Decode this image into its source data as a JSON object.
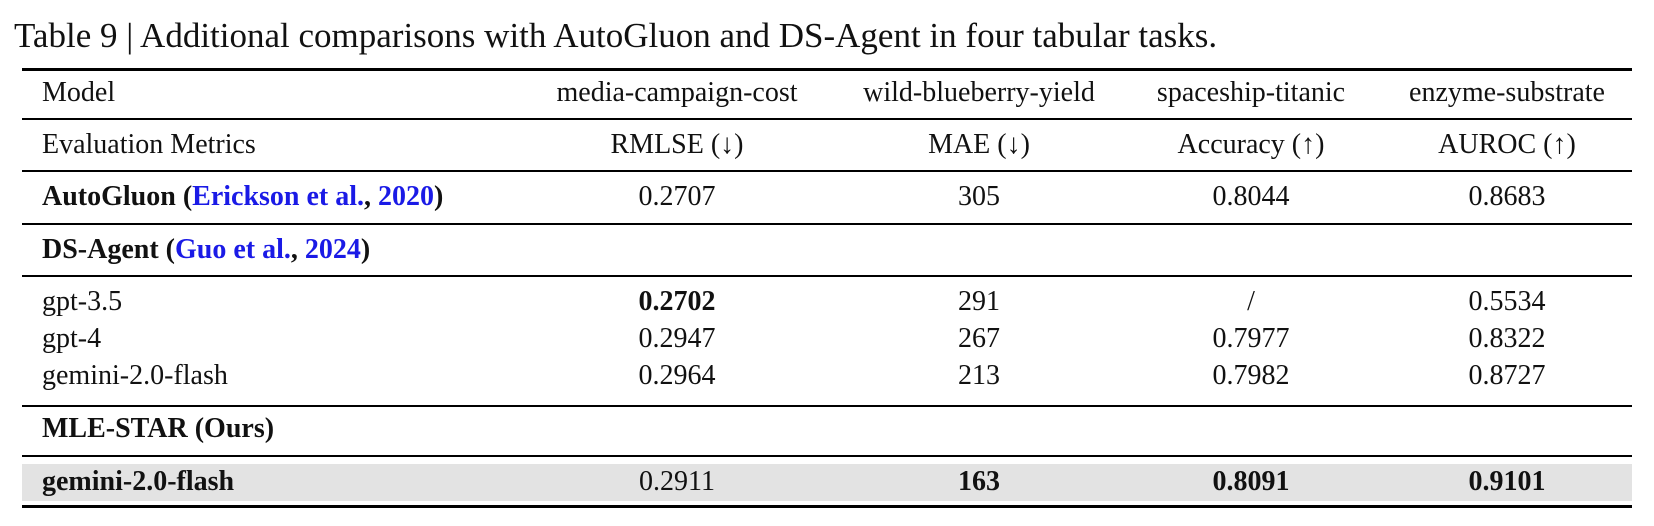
{
  "caption": "Table 9 | Additional comparisons with AutoGluon and DS-Agent in four tabular tasks.",
  "table": {
    "header": [
      "Model",
      "media-campaign-cost",
      "wild-blueberry-yield",
      "spaceship-titanic",
      "enzyme-substrate"
    ],
    "metrics": [
      "Evaluation Metrics",
      "RMLSE (↓)",
      "MAE (↓)",
      "Accuracy (↑)",
      "AUROC (↑)"
    ],
    "autogluon": {
      "label": [
        "AutoGluon (",
        "Erickson et al.",
        ", ",
        "2020",
        ")"
      ],
      "values": [
        "0.2707",
        "305",
        "0.8044",
        "0.8683"
      ]
    },
    "ds_agent": {
      "label": [
        "DS-Agent (",
        "Guo et al.",
        ", ",
        "2024",
        ")"
      ],
      "rows": [
        {
          "model": "gpt-3.5",
          "values": [
            "0.2702",
            "291",
            "/",
            "0.5534"
          ]
        },
        {
          "model": "gpt-4",
          "values": [
            "0.2947",
            "267",
            "0.7977",
            "0.8322"
          ]
        },
        {
          "model": "gemini-2.0-flash",
          "values": [
            "0.2964",
            "213",
            "0.7982",
            "0.8727"
          ]
        }
      ]
    },
    "mle_star": {
      "label": "MLE-STAR (Ours)",
      "rows": [
        {
          "model": "gemini-2.0-flash",
          "values": [
            "0.2911",
            "163",
            "0.8091",
            "0.9101"
          ]
        }
      ]
    }
  }
}
